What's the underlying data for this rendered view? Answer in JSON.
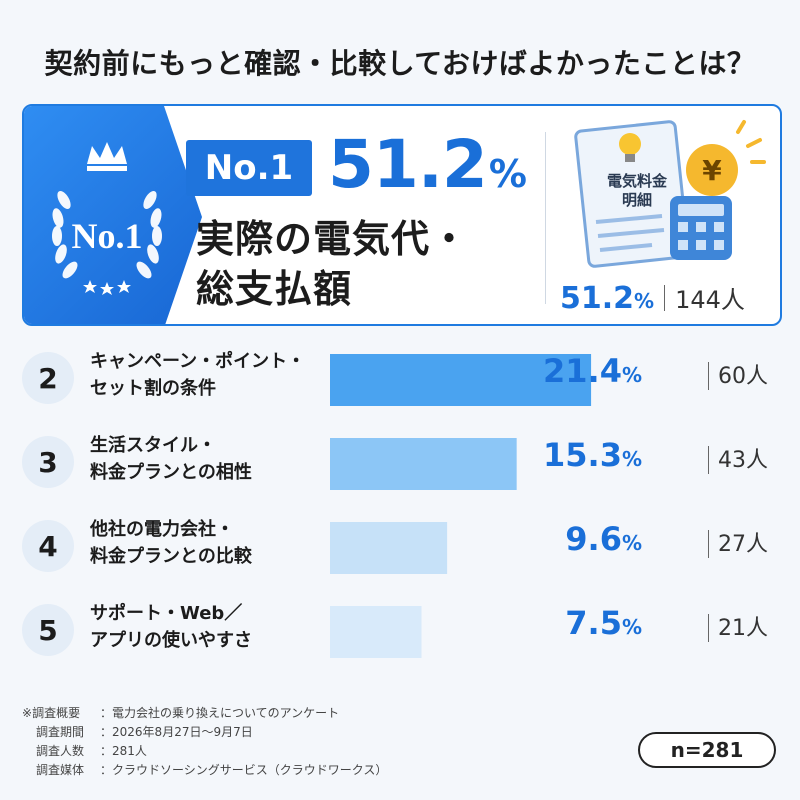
{
  "title": "契約前にもっと確認・比較しておけばよかったことは？",
  "top": {
    "badge_text": "No.1",
    "wreath_text": "No.1",
    "percent": "51.2",
    "unit": "%",
    "label_line1": "実際の電気代・",
    "label_line2": "総支払額",
    "bill_title_line1": "電気料金",
    "bill_title_line2": "明細",
    "yen_symbol": "¥",
    "count": "144人",
    "icons": [
      "crown-icon",
      "laurel-wreath-icon",
      "star-icon",
      "bill-document-icon",
      "lightbulb-icon",
      "yen-coin-icon",
      "calculator-icon"
    ]
  },
  "chart_data": {
    "type": "bar",
    "orientation": "horizontal",
    "title": "契約前にもっと確認・比較しておけばよかったことは？",
    "unit": "%",
    "items": [
      {
        "rank": "1",
        "label_lines": [
          "実際の電気代・",
          "総支払額"
        ],
        "value": 51.2,
        "count": "144人"
      },
      {
        "rank": "2",
        "label_lines": [
          "キャンペーン・ポイント・",
          "セット割の条件"
        ],
        "value": 21.4,
        "count": "60人"
      },
      {
        "rank": "3",
        "label_lines": [
          "生活スタイル・",
          "料金プランとの相性"
        ],
        "value": 15.3,
        "count": "43人"
      },
      {
        "rank": "4",
        "label_lines": [
          "他社の電力会社・",
          "料金プランとの比較"
        ],
        "value": 9.6,
        "count": "27人"
      },
      {
        "rank": "5",
        "label_lines": [
          "サポート・Web／",
          "アプリの使いやすさ"
        ],
        "value": 7.5,
        "count": "21人"
      }
    ],
    "colors": [
      "#4aa3f0",
      "#8cc6f6",
      "#c6e1f8",
      "#d8eafa"
    ]
  },
  "ranks": [
    {
      "rank": "2",
      "line1": "キャンペーン・ポイント・",
      "line2": "セット割の条件",
      "percent": "21.4",
      "count": "60人"
    },
    {
      "rank": "3",
      "line1": "生活スタイル・",
      "line2": "料金プランとの相性",
      "percent": "15.3",
      "count": "43人"
    },
    {
      "rank": "4",
      "line1": "他社の電力会社・",
      "line2": "料金プランとの比較",
      "percent": "9.6",
      "count": "27人"
    },
    {
      "rank": "5",
      "line1": "サポート・Web／",
      "line2": "アプリの使いやすさ",
      "percent": "7.5",
      "count": "21人"
    }
  ],
  "unit": "%",
  "survey": {
    "prefix": "※",
    "rows": [
      {
        "key": "調査概要",
        "value": "電力会社の乗り換えについてのアンケート"
      },
      {
        "key": "調査期間",
        "value": "2026年8月27日〜9月7日"
      },
      {
        "key": "調査人数",
        "value": "281人"
      },
      {
        "key": "調査媒体",
        "value": "クラウドソーシングサービス（クラウドワークス）"
      }
    ],
    "separator": "：",
    "n_label": "n=281"
  }
}
